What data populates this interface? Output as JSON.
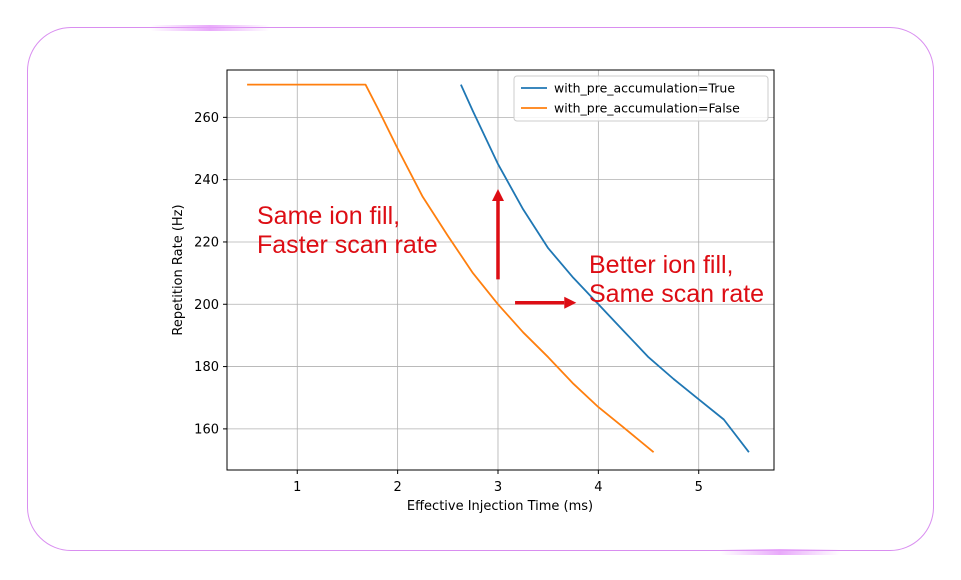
{
  "chart_data": {
    "type": "line",
    "xlabel": "Effective Injection Time (ms)",
    "ylabel": "Repetition Rate (Hz)",
    "xlim": [
      0.3,
      5.75
    ],
    "ylim": [
      146.8,
      275.2
    ],
    "xticks": [
      1,
      2,
      3,
      4,
      5
    ],
    "yticks": [
      160,
      180,
      200,
      220,
      240,
      260
    ],
    "grid": true,
    "legend_position": "top-right",
    "series": [
      {
        "name": "with_pre_accumulation=True",
        "color": "#1f77b4",
        "x": [
          2.63,
          2.75,
          3.0,
          3.25,
          3.5,
          3.75,
          4.0,
          4.25,
          4.5,
          4.75,
          5.0,
          5.25,
          5.5
        ],
        "y": [
          270.5,
          262,
          245,
          230.5,
          218,
          208.5,
          200,
          191.5,
          183,
          176,
          169.5,
          163,
          152.5
        ]
      },
      {
        "name": "with_pre_accumulation=False",
        "color": "#ff7f0e",
        "x": [
          0.5,
          1.0,
          1.5,
          1.68,
          1.8,
          2.0,
          2.25,
          2.5,
          2.75,
          3.0,
          3.25,
          3.5,
          3.75,
          4.0,
          4.25,
          4.55
        ],
        "y": [
          270.5,
          270.5,
          270.5,
          270.5,
          263,
          250,
          234.5,
          222,
          210,
          200,
          191,
          183,
          174.5,
          167,
          160.5,
          152.5
        ]
      }
    ],
    "annotations": [
      {
        "lines": [
          "Same ion fill,",
          "Faster scan rate"
        ],
        "color": "#dd0d14"
      },
      {
        "lines": [
          "Better ion fill,",
          "Same scan rate"
        ],
        "color": "#dd0d14"
      }
    ],
    "arrows": [
      {
        "direction": "up",
        "from": [
          3.0,
          208
        ],
        "to": [
          3.0,
          237
        ],
        "color": "#dd0d14"
      },
      {
        "direction": "right",
        "from": [
          3.17,
          200.5
        ],
        "to": [
          3.78,
          200.5
        ],
        "color": "#dd0d14"
      }
    ]
  }
}
